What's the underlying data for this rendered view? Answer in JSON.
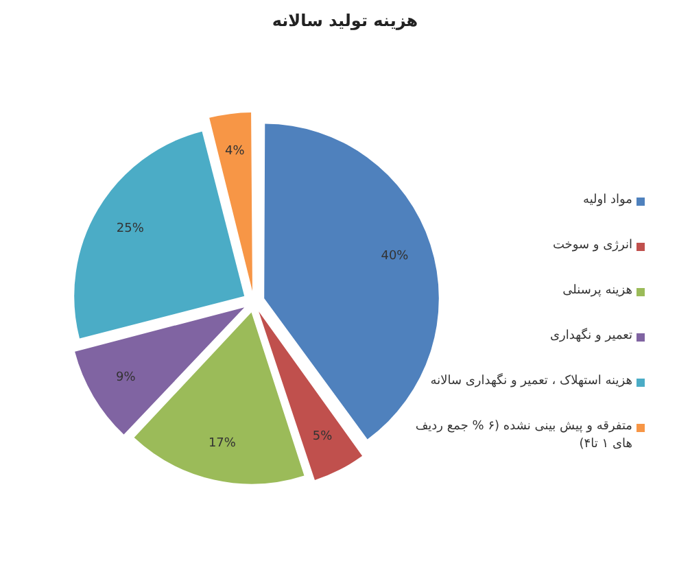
{
  "chart_data": {
    "type": "pie",
    "title": "هزینه تولید سالانه",
    "categories": [
      "مواد اولیه",
      "انرژی و سوخت",
      "هزینه پرسنلی",
      "تعمیر و نگهداری",
      "هزینه استهلاک ، تعمیر و نگهداری سالانه",
      "متفرقه و پیش بینی نشده (۶ % جمع ردیف های ۱ تا۴)"
    ],
    "values": [
      40,
      5,
      17,
      9,
      25,
      4
    ],
    "colors": [
      "#4f81bd",
      "#c0504d",
      "#9bbb59",
      "#8064a2",
      "#4bacc6",
      "#f79646"
    ],
    "value_labels": [
      "40%",
      "5%",
      "17%",
      "9%",
      "25%",
      "4%"
    ],
    "legend": "right"
  }
}
